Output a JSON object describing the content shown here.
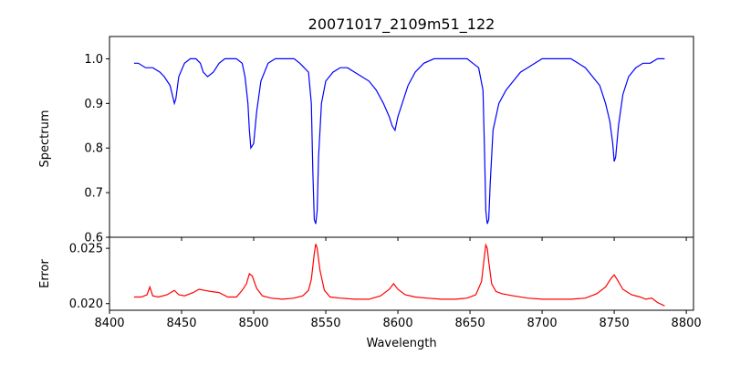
{
  "chart_data": [
    {
      "type": "line",
      "title": "20071017_2109m51_122",
      "xlabel": "",
      "ylabel": "Spectrum",
      "xlim": [
        8400,
        8805
      ],
      "ylim": [
        0.6,
        1.05
      ],
      "xticks": [
        8400,
        8450,
        8500,
        8550,
        8600,
        8650,
        8700,
        8750,
        8800
      ],
      "yticks": [
        0.6,
        0.7,
        0.8,
        0.9,
        1.0
      ],
      "ytick_labels": [
        "0.6",
        "0.7",
        "0.8",
        "0.9",
        "1.0"
      ],
      "xtick_labels_visible": false,
      "grid": false,
      "series": [
        {
          "name": "Spectrum",
          "color": "#0000ff",
          "x": [
            8417,
            8420,
            8425,
            8430,
            8435,
            8438,
            8442,
            8445,
            8446,
            8448,
            8452,
            8456,
            8460,
            8463,
            8465,
            8468,
            8472,
            8476,
            8480,
            8484,
            8488,
            8492,
            8494,
            8496,
            8497,
            8498,
            8500,
            8502,
            8505,
            8510,
            8515,
            8520,
            8524,
            8528,
            8532,
            8535,
            8538,
            8540,
            8541,
            8542,
            8543,
            8544,
            8545,
            8547,
            8550,
            8555,
            8560,
            8565,
            8570,
            8575,
            8580,
            8585,
            8590,
            8594,
            8596,
            8598,
            8600,
            8603,
            8607,
            8612,
            8618,
            8625,
            8632,
            8640,
            8648,
            8652,
            8656,
            8659,
            8660,
            8661,
            8662,
            8663,
            8664,
            8666,
            8670,
            8675,
            8680,
            8685,
            8690,
            8695,
            8700,
            8705,
            8710,
            8715,
            8720,
            8725,
            8730,
            8735,
            8740,
            8744,
            8747,
            8749,
            8750,
            8751,
            8753,
            8756,
            8760,
            8765,
            8770,
            8775,
            8780,
            8785
          ],
          "values": [
            0.99,
            0.99,
            0.98,
            0.98,
            0.97,
            0.96,
            0.94,
            0.9,
            0.91,
            0.96,
            0.99,
            1.0,
            1.0,
            0.99,
            0.97,
            0.96,
            0.97,
            0.99,
            1.0,
            1.0,
            1.0,
            0.99,
            0.96,
            0.9,
            0.84,
            0.8,
            0.81,
            0.88,
            0.95,
            0.99,
            1.0,
            1.0,
            1.0,
            1.0,
            0.99,
            0.98,
            0.97,
            0.9,
            0.75,
            0.64,
            0.63,
            0.66,
            0.78,
            0.9,
            0.95,
            0.97,
            0.98,
            0.98,
            0.97,
            0.96,
            0.95,
            0.93,
            0.9,
            0.87,
            0.85,
            0.84,
            0.87,
            0.9,
            0.94,
            0.97,
            0.99,
            1.0,
            1.0,
            1.0,
            1.0,
            0.99,
            0.98,
            0.93,
            0.8,
            0.66,
            0.63,
            0.64,
            0.72,
            0.84,
            0.9,
            0.93,
            0.95,
            0.97,
            0.98,
            0.99,
            1.0,
            1.0,
            1.0,
            1.0,
            1.0,
            0.99,
            0.98,
            0.96,
            0.94,
            0.9,
            0.86,
            0.81,
            0.77,
            0.78,
            0.85,
            0.92,
            0.96,
            0.98,
            0.99,
            0.99,
            1.0,
            1.0
          ]
        }
      ]
    },
    {
      "type": "line",
      "title": "",
      "xlabel": "Wavelength",
      "ylabel": "Error",
      "xlim": [
        8400,
        8805
      ],
      "ylim": [
        0.0194,
        0.026
      ],
      "xticks": [
        8400,
        8450,
        8500,
        8550,
        8600,
        8650,
        8700,
        8750,
        8800
      ],
      "xtick_labels": [
        "8400",
        "8450",
        "8500",
        "8550",
        "8600",
        "8650",
        "8700",
        "8750",
        "8800"
      ],
      "yticks": [
        0.02,
        0.025
      ],
      "ytick_labels": [
        "0.020",
        "0.025"
      ],
      "grid": false,
      "series": [
        {
          "name": "Error",
          "color": "#ff0000",
          "x": [
            8417,
            8422,
            8426,
            8428,
            8430,
            8434,
            8440,
            8445,
            8448,
            8452,
            8458,
            8462,
            8466,
            8470,
            8476,
            8482,
            8488,
            8492,
            8495,
            8497,
            8499,
            8502,
            8506,
            8512,
            8520,
            8528,
            8534,
            8538,
            8540,
            8542,
            8543,
            8544,
            8546,
            8549,
            8553,
            8560,
            8570,
            8580,
            8588,
            8594,
            8597,
            8600,
            8605,
            8612,
            8620,
            8630,
            8640,
            8648,
            8654,
            8658,
            8660,
            8661,
            8662,
            8663,
            8665,
            8668,
            8672,
            8680,
            8690,
            8700,
            8710,
            8720,
            8730,
            8738,
            8744,
            8748,
            8750,
            8752,
            8756,
            8762,
            8768,
            8772,
            8776,
            8780,
            8785
          ],
          "values": [
            0.0206,
            0.0206,
            0.0208,
            0.0215,
            0.0207,
            0.0206,
            0.0208,
            0.0212,
            0.0208,
            0.0207,
            0.021,
            0.0213,
            0.0212,
            0.0211,
            0.021,
            0.0206,
            0.0206,
            0.0212,
            0.0218,
            0.0227,
            0.0225,
            0.0214,
            0.0207,
            0.0205,
            0.0204,
            0.0205,
            0.0207,
            0.0212,
            0.0222,
            0.0245,
            0.0254,
            0.025,
            0.023,
            0.0212,
            0.0206,
            0.0205,
            0.0204,
            0.0204,
            0.0207,
            0.0213,
            0.0218,
            0.0213,
            0.0208,
            0.0206,
            0.0205,
            0.0204,
            0.0204,
            0.0205,
            0.0208,
            0.022,
            0.0243,
            0.0253,
            0.025,
            0.0238,
            0.0218,
            0.0211,
            0.0209,
            0.0207,
            0.0205,
            0.0204,
            0.0204,
            0.0204,
            0.0205,
            0.0209,
            0.0215,
            0.0223,
            0.0226,
            0.0222,
            0.0213,
            0.0208,
            0.0206,
            0.0204,
            0.0205,
            0.0201,
            0.0198
          ]
        }
      ]
    }
  ]
}
